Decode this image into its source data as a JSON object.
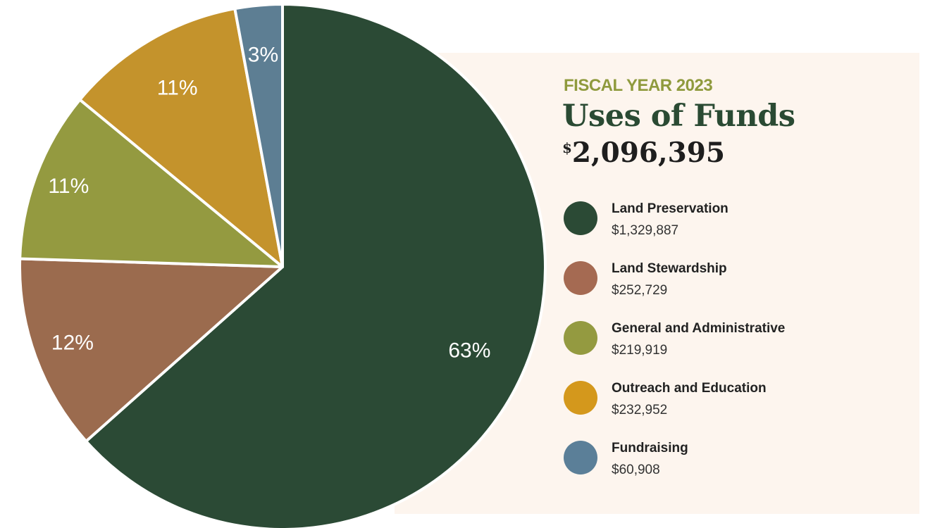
{
  "header": {
    "eyebrow": "FISCAL YEAR 2023",
    "title": "Uses of Funds",
    "total_currency": "$",
    "total_amount": "2,096,395"
  },
  "colors": {
    "land_preservation": "#2b4a35",
    "land_stewardship": "#9b6b4e",
    "general_admin": "#949a40",
    "outreach": "#c4932c",
    "fundraising": "#5d7e93",
    "legend_outreach": "#d4981c",
    "legend_fundraising": "#5b7f98",
    "legend_stewardship": "#a56a52"
  },
  "chart_data": {
    "type": "pie",
    "title": "Uses of Funds",
    "slices": [
      {
        "name": "Land Preservation",
        "value": 1329887,
        "percent_label": "63%",
        "color": "#2b4a35"
      },
      {
        "name": "Land Stewardship",
        "value": 252729,
        "percent_label": "12%",
        "color": "#9b6b4e"
      },
      {
        "name": "General and Administrative",
        "value": 219919,
        "percent_label": "11%",
        "color": "#949a40"
      },
      {
        "name": "Outreach and Education",
        "value": 232952,
        "percent_label": "11%",
        "color": "#c4932c"
      },
      {
        "name": "Fundraising",
        "value": 60908,
        "percent_label": "3%",
        "color": "#5d7e93"
      }
    ],
    "start": "12 o'clock",
    "direction": "clockwise"
  },
  "legend": [
    {
      "label": "Land Preservation",
      "amount": "$1,329,887",
      "color": "#2b4a35"
    },
    {
      "label": "Land Stewardship",
      "amount": "$252,729",
      "color": "#a56a52"
    },
    {
      "label": "General and Administrative",
      "amount": "$219,919",
      "color": "#949a40"
    },
    {
      "label": "Outreach and Education",
      "amount": "$232,952",
      "color": "#d4981c"
    },
    {
      "label": "Fundraising",
      "amount": "$60,908",
      "color": "#5b7f98"
    }
  ]
}
